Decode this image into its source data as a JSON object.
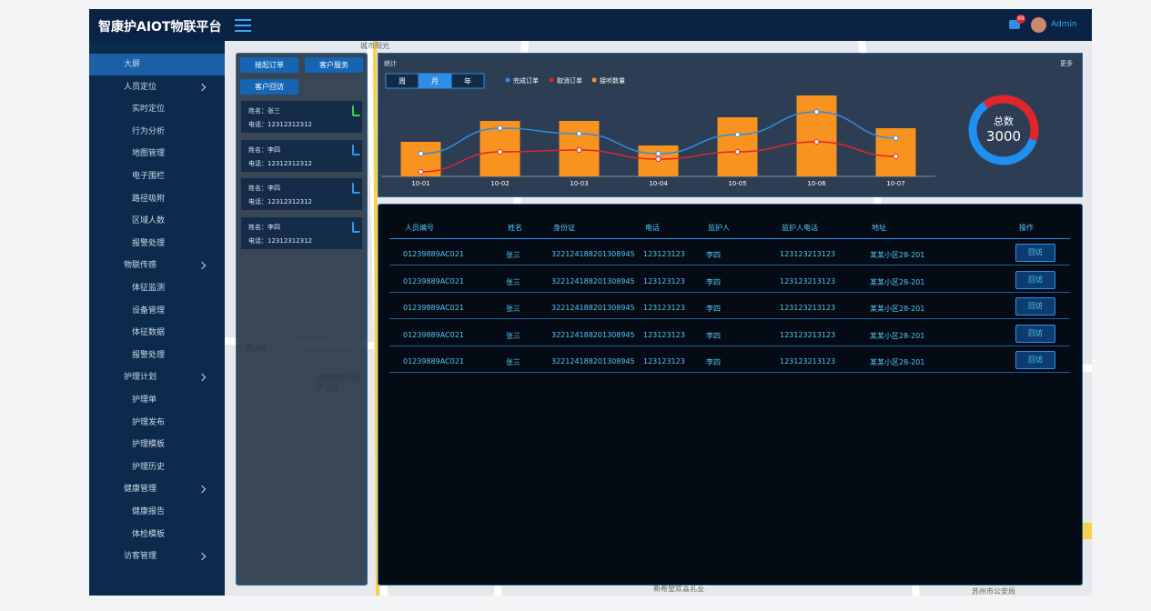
{
  "header": {
    "title": "智康护AIOT物联平台",
    "badge": "99",
    "user": "Admin"
  },
  "sidebar": {
    "items": [
      {
        "label": "大屏",
        "active": true
      },
      {
        "label": "人员定位",
        "group": true
      },
      {
        "label": "实时定位"
      },
      {
        "label": "行为分析"
      },
      {
        "label": "地图管理"
      },
      {
        "label": "电子围栏"
      },
      {
        "label": "路径吸附"
      },
      {
        "label": "区域人数"
      },
      {
        "label": "报警处理"
      },
      {
        "label": "物联传感",
        "group": true
      },
      {
        "label": "体征监测"
      },
      {
        "label": "设备管理"
      },
      {
        "label": "体征数据"
      },
      {
        "label": "报警处理"
      },
      {
        "label": "护理计划",
        "group": true
      },
      {
        "label": "护理单"
      },
      {
        "label": "护理发布"
      },
      {
        "label": "护理模板"
      },
      {
        "label": "护理历史"
      },
      {
        "label": "健康管理",
        "group": true
      },
      {
        "label": "健康报告"
      },
      {
        "label": "体检模板"
      },
      {
        "label": "访客管理",
        "group": true
      }
    ]
  },
  "map": {
    "labels": [
      "城市阳光",
      "西山路",
      "金枫智能制造产业园",
      "新希望双喜乳业",
      "苏州市公安局"
    ]
  },
  "calls": {
    "buttons": [
      "接起订单",
      "客户服务",
      "客户回访"
    ],
    "items": [
      {
        "name": "姓名：张三",
        "phone": "电话：12312312312",
        "active": true
      },
      {
        "name": "姓名：李四",
        "phone": "电话：12312312312"
      },
      {
        "name": "姓名：李四",
        "phone": "电话：12312312312"
      },
      {
        "name": "姓名：李四",
        "phone": "电话：12312312312"
      }
    ]
  },
  "stats": {
    "title": "统计",
    "more": "更多",
    "tabs": [
      "周",
      "月",
      "年"
    ],
    "active_tab": 1,
    "chart_data": {
      "type": "bar-line",
      "categories": [
        "10-01",
        "10-02",
        "10-03",
        "10-04",
        "10-05",
        "10-06",
        "10-07"
      ],
      "ylim": [
        0,
        100
      ],
      "series": [
        {
          "name": "完成订单",
          "type": "line",
          "color": "#2f8de4",
          "values": [
            25,
            53,
            47,
            25,
            46,
            71,
            42
          ]
        },
        {
          "name": "取消订单",
          "type": "line",
          "color": "#e0262b",
          "values": [
            5,
            27,
            29,
            19,
            27,
            38,
            22
          ]
        },
        {
          "name": "接听数量",
          "type": "bar",
          "color": "#f7931e",
          "values": [
            38,
            61,
            61,
            34,
            65,
            89,
            53
          ]
        }
      ]
    },
    "donut": {
      "label": "总数",
      "total": 3000,
      "values": [
        1200,
        1800
      ],
      "colors": [
        "#e0262b",
        "#1f8ff0"
      ]
    }
  },
  "table": {
    "headers": [
      "人员编号",
      "姓名",
      "身份证",
      "电话",
      "监护人",
      "监护人电话",
      "地址",
      "操作"
    ],
    "rows": [
      [
        "01239889AC021",
        "张三",
        "322124188201308945",
        "123123123",
        "李四",
        "123123213123",
        "某某小区28-201",
        "回访"
      ],
      [
        "01239889AC021",
        "张三",
        "322124188201308945",
        "123123123",
        "李四",
        "123123213123",
        "某某小区28-201",
        "回访"
      ],
      [
        "01239889AC021",
        "张三",
        "322124188201308945",
        "123123123",
        "李四",
        "123123213123",
        "某某小区28-201",
        "回访"
      ],
      [
        "01239889AC021",
        "张三",
        "322124188201308945",
        "123123123",
        "李四",
        "123123213123",
        "某某小区28-201",
        "回访"
      ],
      [
        "01239889AC021",
        "张三",
        "322124188201308945",
        "123123123",
        "李四",
        "123123213123",
        "某某小区28-201",
        "回访"
      ]
    ]
  }
}
